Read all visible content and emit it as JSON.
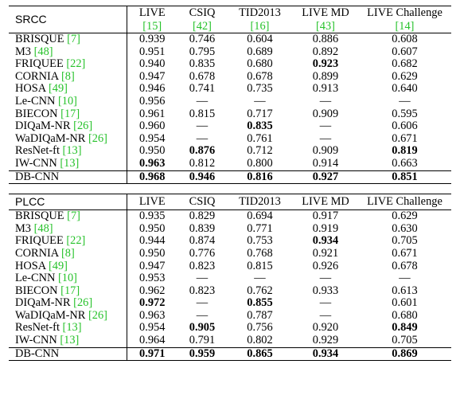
{
  "columns": [
    {
      "name": "LIVE",
      "cite": "[15]"
    },
    {
      "name": "CSIQ",
      "cite": "[42]"
    },
    {
      "name": "TID2013",
      "cite": "[16]"
    },
    {
      "name": "LIVE MD",
      "cite": "[43]"
    },
    {
      "name": "LIVE Challenge",
      "cite": "[14]"
    }
  ],
  "srcc": {
    "label": "SRCC",
    "rows": [
      {
        "method": "BRISQUE",
        "cite": "[7]",
        "values": [
          "0.939",
          "0.746",
          "0.604",
          "0.886",
          "0.608"
        ],
        "bold": [
          false,
          false,
          false,
          false,
          false
        ]
      },
      {
        "method": "M3",
        "cite": "[48]",
        "values": [
          "0.951",
          "0.795",
          "0.689",
          "0.892",
          "0.607"
        ],
        "bold": [
          false,
          false,
          false,
          false,
          false
        ]
      },
      {
        "method": "FRIQUEE",
        "cite": "[22]",
        "values": [
          "0.940",
          "0.835",
          "0.680",
          "0.923",
          "0.682"
        ],
        "bold": [
          false,
          false,
          false,
          true,
          false
        ]
      },
      {
        "method": "CORNIA",
        "cite": "[8]",
        "values": [
          "0.947",
          "0.678",
          "0.678",
          "0.899",
          "0.629"
        ],
        "bold": [
          false,
          false,
          false,
          false,
          false
        ]
      },
      {
        "method": "HOSA",
        "cite": "[49]",
        "values": [
          "0.946",
          "0.741",
          "0.735",
          "0.913",
          "0.640"
        ],
        "bold": [
          false,
          false,
          false,
          false,
          false
        ]
      },
      {
        "method": "Le-CNN",
        "cite": "[10]",
        "values": [
          "0.956",
          "—",
          "—",
          "—",
          "—"
        ],
        "bold": [
          false,
          false,
          false,
          false,
          false
        ]
      },
      {
        "method": "BIECON",
        "cite": "[17]",
        "values": [
          "0.961",
          "0.815",
          "0.717",
          "0.909",
          "0.595"
        ],
        "bold": [
          false,
          false,
          false,
          false,
          false
        ]
      },
      {
        "method": "DIQaM-NR",
        "cite": "[26]",
        "values": [
          "0.960",
          "—",
          "0.835",
          "—",
          "0.606"
        ],
        "bold": [
          false,
          false,
          true,
          false,
          false
        ]
      },
      {
        "method": "WaDIQaM-NR",
        "cite": "[26]",
        "values": [
          "0.954",
          "—",
          "0.761",
          "—",
          "0.671"
        ],
        "bold": [
          false,
          false,
          false,
          false,
          false
        ]
      },
      {
        "method": "ResNet-ft",
        "cite": "[13]",
        "values": [
          "0.950",
          "0.876",
          "0.712",
          "0.909",
          "0.819"
        ],
        "bold": [
          false,
          true,
          false,
          false,
          true
        ]
      },
      {
        "method": "IW-CNN",
        "cite": "[13]",
        "values": [
          "0.963",
          "0.812",
          "0.800",
          "0.914",
          "0.663"
        ],
        "bold": [
          true,
          false,
          false,
          false,
          false
        ]
      }
    ],
    "final": {
      "method": "DB-CNN",
      "values": [
        "0.968",
        "0.946",
        "0.816",
        "0.927",
        "0.851"
      ],
      "bold": [
        true,
        true,
        true,
        true,
        true
      ]
    }
  },
  "plcc": {
    "label": "PLCC",
    "rows": [
      {
        "method": "BRISQUE",
        "cite": "[7]",
        "values": [
          "0.935",
          "0.829",
          "0.694",
          "0.917",
          "0.629"
        ],
        "bold": [
          false,
          false,
          false,
          false,
          false
        ]
      },
      {
        "method": "M3",
        "cite": "[48]",
        "values": [
          "0.950",
          "0.839",
          "0.771",
          "0.919",
          "0.630"
        ],
        "bold": [
          false,
          false,
          false,
          false,
          false
        ]
      },
      {
        "method": "FRIQUEE",
        "cite": "[22]",
        "values": [
          "0.944",
          "0.874",
          "0.753",
          "0.934",
          "0.705"
        ],
        "bold": [
          false,
          false,
          false,
          true,
          false
        ]
      },
      {
        "method": "CORNIA",
        "cite": "[8]",
        "values": [
          "0.950",
          "0.776",
          "0.768",
          "0.921",
          "0.671"
        ],
        "bold": [
          false,
          false,
          false,
          false,
          false
        ]
      },
      {
        "method": "HOSA",
        "cite": "[49]",
        "values": [
          "0.947",
          "0.823",
          "0.815",
          "0.926",
          "0.678"
        ],
        "bold": [
          false,
          false,
          false,
          false,
          false
        ]
      },
      {
        "method": "Le-CNN",
        "cite": "[10]",
        "values": [
          "0.953",
          "—",
          "—",
          "—",
          "—"
        ],
        "bold": [
          false,
          false,
          false,
          false,
          false
        ]
      },
      {
        "method": "BIECON",
        "cite": "[17]",
        "values": [
          "0.962",
          "0.823",
          "0.762",
          "0.933",
          "0.613"
        ],
        "bold": [
          false,
          false,
          false,
          false,
          false
        ]
      },
      {
        "method": "DIQaM-NR",
        "cite": "[26]",
        "values": [
          "0.972",
          "—",
          "0.855",
          "—",
          "0.601"
        ],
        "bold": [
          true,
          false,
          true,
          false,
          false
        ]
      },
      {
        "method": "WaDIQaM-NR",
        "cite": "[26]",
        "values": [
          "0.963",
          "—",
          "0.787",
          "—",
          "0.680"
        ],
        "bold": [
          false,
          false,
          false,
          false,
          false
        ]
      },
      {
        "method": "ResNet-ft",
        "cite": "[13]",
        "values": [
          "0.954",
          "0.905",
          "0.756",
          "0.920",
          "0.849"
        ],
        "bold": [
          false,
          true,
          false,
          false,
          true
        ]
      },
      {
        "method": "IW-CNN",
        "cite": "[13]",
        "values": [
          "0.964",
          "0.791",
          "0.802",
          "0.929",
          "0.705"
        ],
        "bold": [
          false,
          false,
          false,
          false,
          false
        ]
      }
    ],
    "final": {
      "method": "DB-CNN",
      "values": [
        "0.971",
        "0.959",
        "0.865",
        "0.934",
        "0.869"
      ],
      "bold": [
        true,
        true,
        true,
        true,
        true
      ]
    }
  }
}
